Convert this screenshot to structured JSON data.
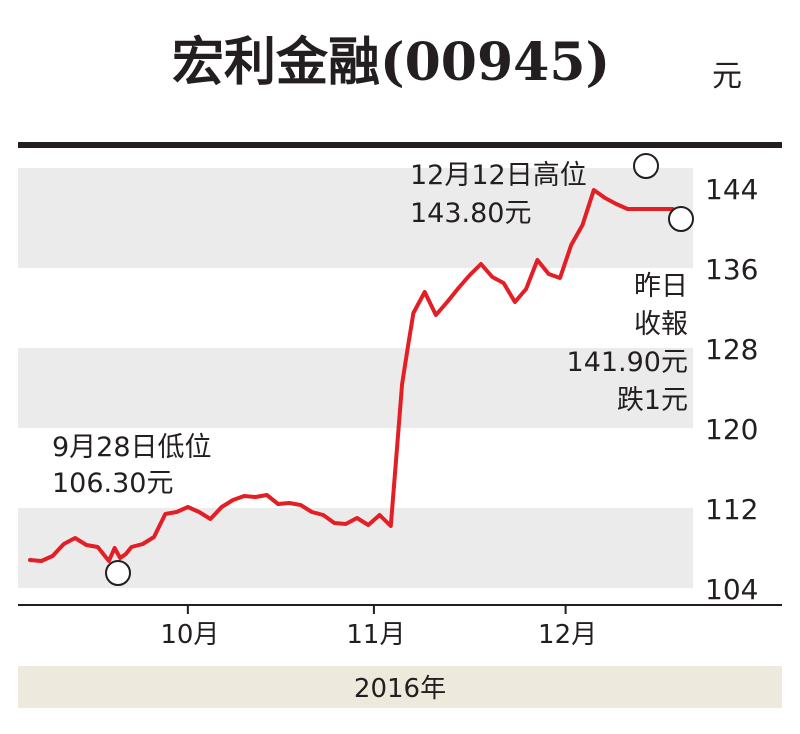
{
  "chart_data": {
    "type": "line",
    "title": "宏利金融(00945)",
    "unit": "元",
    "year_label": "2016年",
    "ylim": [
      104,
      148
    ],
    "y_ticks": [
      104,
      112,
      120,
      128,
      136,
      144
    ],
    "y_tick_labels": [
      "104",
      "112",
      "120",
      "128",
      "136",
      "144"
    ],
    "x_ticks": [
      {
        "label": "10月",
        "x": 28
      },
      {
        "label": "11月",
        "x": 61
      },
      {
        "label": "12月",
        "x": 95
      }
    ],
    "xlim": [
      0,
      116
    ],
    "grid_bands": true,
    "colors": {
      "line": "#e31e24",
      "band": "#ebebeb",
      "axis": "#231f20",
      "footer": "#ede9dd"
    },
    "series": [
      {
        "x": [
          0,
          2,
          4,
          6,
          8,
          10,
          12,
          14,
          15,
          16,
          17,
          18,
          20,
          22,
          24,
          26,
          28,
          30,
          32,
          34,
          36,
          38,
          40,
          42,
          44,
          46,
          48,
          50,
          52,
          54,
          56,
          58,
          60,
          62,
          64,
          66,
          67,
          68,
          70,
          72,
          74,
          76,
          78,
          80,
          82,
          84,
          86,
          88,
          90,
          92,
          94,
          96,
          98,
          100,
          102,
          104,
          106,
          108,
          110,
          112,
          114
        ],
        "values": [
          106.8,
          106.7,
          107.2,
          108.4,
          109.0,
          108.3,
          108.1,
          106.7,
          108.0,
          107.0,
          107.4,
          108.1,
          108.4,
          109.1,
          111.4,
          111.6,
          112.1,
          111.6,
          110.9,
          112.1,
          112.8,
          113.2,
          113.1,
          113.3,
          112.4,
          112.5,
          112.3,
          111.6,
          111.3,
          110.5,
          110.4,
          111.0,
          110.3,
          111.3,
          110.2,
          124.4,
          128.0,
          131.5,
          133.6,
          131.3,
          132.6,
          134.0,
          135.3,
          136.4,
          135.1,
          134.5,
          132.6,
          133.9,
          136.8,
          135.4,
          135.0,
          138.3,
          140.3,
          143.8,
          143.0,
          142.4,
          141.9,
          141.9,
          141.9,
          141.9,
          141.9
        ]
      }
    ],
    "annotations": [
      {
        "id": "low",
        "lines": [
          "9月28日低位",
          "106.30元"
        ],
        "x": 15,
        "y": 106.3
      },
      {
        "id": "high",
        "lines": [
          "12月12日高位",
          "143.80元"
        ],
        "x": 100,
        "y": 143.8
      },
      {
        "id": "close",
        "lines": [
          "昨日",
          "收報",
          "141.90元",
          "跌1元"
        ],
        "x": 104,
        "y": 141.9
      }
    ]
  }
}
